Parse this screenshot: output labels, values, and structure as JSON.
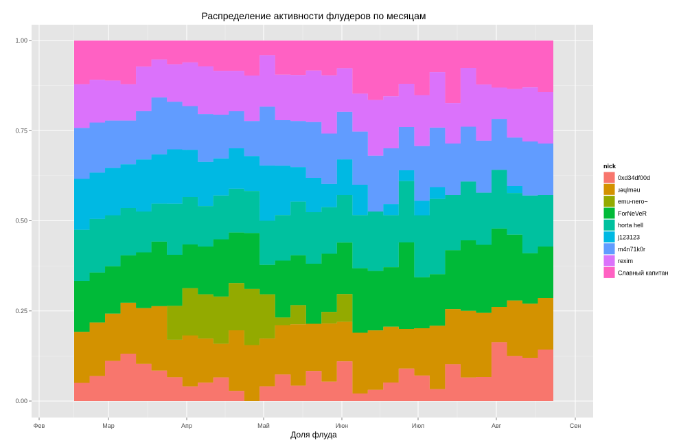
{
  "chart_data": {
    "type": "area",
    "title": "Распределение активности флудеров по месяцам",
    "xlabel": "Доля флуда",
    "ylabel": "",
    "x_ticks": [
      "Фев",
      "Мар",
      "Апр",
      "Май",
      "Июн",
      "Июл",
      "Авг",
      "Сен"
    ],
    "y_ticks": [
      "0.00",
      "0.25",
      "0.50",
      "0.75",
      "1.00"
    ],
    "ylim": [
      0,
      1
    ],
    "grid": true,
    "stacked": true,
    "legend": {
      "title": "nick",
      "position": "right"
    },
    "series": [
      {
        "name": "0xd34df00d",
        "color": "#F8766D",
        "values": [
          0.05,
          0.07,
          0.11,
          0.13,
          0.1,
          0.08,
          0.07,
          0.04,
          0.05,
          0.07,
          0.03,
          0.0,
          0.04,
          0.07,
          0.04,
          0.07,
          0.05,
          0.1,
          0.02,
          0.03,
          0.05,
          0.09,
          0.07,
          0.03,
          0.1,
          0.06,
          0.06,
          0.15,
          0.13,
          0.12,
          0.14
        ]
      },
      {
        "name": "ɹəɥlməu",
        "color": "#D39200",
        "values": [
          0.14,
          0.15,
          0.13,
          0.14,
          0.15,
          0.17,
          0.11,
          0.14,
          0.12,
          0.1,
          0.18,
          0.16,
          0.13,
          0.13,
          0.16,
          0.11,
          0.15,
          0.1,
          0.16,
          0.16,
          0.15,
          0.11,
          0.13,
          0.16,
          0.15,
          0.17,
          0.16,
          0.09,
          0.16,
          0.15,
          0.14
        ]
      },
      {
        "name": "emu-nero~",
        "color": "#93AA00",
        "values": [
          0.0,
          0.0,
          0.0,
          0.0,
          0.0,
          0.0,
          0.1,
          0.13,
          0.12,
          0.14,
          0.14,
          0.16,
          0.12,
          0.02,
          0.05,
          0.0,
          0.03,
          0.07,
          0.0,
          0.0,
          0.0,
          0.0,
          0.0,
          0.0,
          0.0,
          0.0,
          0.0,
          0.0,
          0.0,
          0.0,
          0.0
        ]
      },
      {
        "name": "ForNeVeR",
        "color": "#00BA38",
        "values": [
          0.14,
          0.14,
          0.13,
          0.13,
          0.15,
          0.17,
          0.15,
          0.12,
          0.13,
          0.17,
          0.15,
          0.16,
          0.08,
          0.15,
          0.13,
          0.14,
          0.15,
          0.13,
          0.17,
          0.16,
          0.16,
          0.24,
          0.14,
          0.13,
          0.16,
          0.18,
          0.17,
          0.2,
          0.19,
          0.14,
          0.14
        ]
      },
      {
        "name": "horta hell",
        "color": "#00C19F",
        "values": [
          0.14,
          0.15,
          0.14,
          0.13,
          0.11,
          0.1,
          0.15,
          0.13,
          0.11,
          0.13,
          0.13,
          0.12,
          0.12,
          0.12,
          0.14,
          0.12,
          0.12,
          0.12,
          0.14,
          0.16,
          0.14,
          0.17,
          0.17,
          0.19,
          0.15,
          0.15,
          0.13,
          0.15,
          0.12,
          0.16,
          0.14
        ]
      },
      {
        "name": "j123123",
        "color": "#00B9E3",
        "values": [
          0.14,
          0.13,
          0.13,
          0.12,
          0.14,
          0.13,
          0.16,
          0.13,
          0.12,
          0.11,
          0.12,
          0.1,
          0.15,
          0.13,
          0.09,
          0.08,
          0.06,
          0.09,
          0.08,
          0.0,
          0.03,
          0.03,
          0.04,
          0.03,
          0.0,
          0.0,
          0.0,
          0.0,
          0.02,
          0.0,
          0.0
        ]
      },
      {
        "name": "m4n71k0r",
        "color": "#619CFF",
        "values": [
          0.14,
          0.14,
          0.13,
          0.12,
          0.13,
          0.15,
          0.14,
          0.12,
          0.13,
          0.13,
          0.11,
          0.1,
          0.16,
          0.12,
          0.12,
          0.13,
          0.13,
          0.12,
          0.14,
          0.15,
          0.15,
          0.12,
          0.15,
          0.15,
          0.14,
          0.14,
          0.13,
          0.13,
          0.14,
          0.15,
          0.14
        ]
      },
      {
        "name": "rexim",
        "color": "#DB72FB",
        "values": [
          0.12,
          0.12,
          0.11,
          0.1,
          0.12,
          0.1,
          0.11,
          0.12,
          0.13,
          0.13,
          0.12,
          0.13,
          0.14,
          0.12,
          0.12,
          0.12,
          0.15,
          0.11,
          0.1,
          0.15,
          0.14,
          0.12,
          0.14,
          0.14,
          0.11,
          0.15,
          0.14,
          0.08,
          0.14,
          0.15,
          0.14
        ]
      },
      {
        "name": "Славный капитан",
        "color": "#FF61C3",
        "values": [
          0.12,
          0.11,
          0.11,
          0.12,
          0.07,
          0.05,
          0.07,
          0.06,
          0.07,
          0.09,
          0.09,
          0.1,
          0.04,
          0.09,
          0.09,
          0.07,
          0.09,
          0.07,
          0.14,
          0.16,
          0.15,
          0.12,
          0.15,
          0.08,
          0.17,
          0.07,
          0.11,
          0.12,
          0.14,
          0.13,
          0.14
        ]
      }
    ]
  }
}
